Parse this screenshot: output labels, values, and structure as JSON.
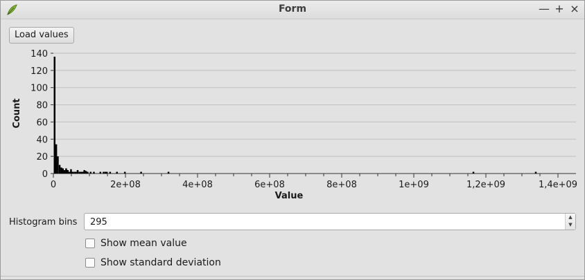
{
  "window": {
    "title": "Form",
    "controls": {
      "minimize": "—",
      "maximize": "+",
      "close": "×"
    }
  },
  "toolbar": {
    "load_label": "Load values"
  },
  "chart_data": {
    "type": "bar",
    "title": "",
    "xlabel": "Value",
    "ylabel": "Count",
    "xlim": [
      0,
      1400000000
    ],
    "ylim": [
      0,
      140
    ],
    "xticks": [
      0,
      200000000,
      400000000,
      600000000,
      800000000,
      1000000000,
      1200000000,
      1400000000
    ],
    "xtick_labels": [
      "0",
      "2e+08",
      "4e+08",
      "6e+08",
      "8e+08",
      "1e+09",
      "1,2e+09",
      "1,4e+09"
    ],
    "yticks": [
      0,
      20,
      40,
      60,
      80,
      100,
      120,
      140
    ],
    "ytick_labels": [
      "0",
      "20",
      "40",
      "60",
      "80",
      "100",
      "120",
      "140"
    ],
    "grid": "horizontal",
    "bar_width": 4500000,
    "bars": [
      {
        "x": 1000000,
        "y": 136
      },
      {
        "x": 5500000,
        "y": 34
      },
      {
        "x": 10000000,
        "y": 20
      },
      {
        "x": 15000000,
        "y": 10
      },
      {
        "x": 19500000,
        "y": 7
      },
      {
        "x": 24000000,
        "y": 6
      },
      {
        "x": 28500000,
        "y": 4
      },
      {
        "x": 33000000,
        "y": 6
      },
      {
        "x": 37500000,
        "y": 4
      },
      {
        "x": 42000000,
        "y": 2
      },
      {
        "x": 46500000,
        "y": 5
      },
      {
        "x": 51000000,
        "y": 2
      },
      {
        "x": 56000000,
        "y": 2
      },
      {
        "x": 60500000,
        "y": 2
      },
      {
        "x": 65000000,
        "y": 4
      },
      {
        "x": 70000000,
        "y": 2
      },
      {
        "x": 74500000,
        "y": 2
      },
      {
        "x": 79000000,
        "y": 2
      },
      {
        "x": 83500000,
        "y": 4
      },
      {
        "x": 88000000,
        "y": 3
      },
      {
        "x": 92500000,
        "y": 2
      },
      {
        "x": 101000000,
        "y": 2
      },
      {
        "x": 110000000,
        "y": 2
      },
      {
        "x": 128000000,
        "y": 2
      },
      {
        "x": 137000000,
        "y": 2
      },
      {
        "x": 142000000,
        "y": 2
      },
      {
        "x": 146000000,
        "y": 2
      },
      {
        "x": 155000000,
        "y": 2
      },
      {
        "x": 174000000,
        "y": 2
      },
      {
        "x": 196000000,
        "y": 2
      },
      {
        "x": 241000000,
        "y": 2
      },
      {
        "x": 317000000,
        "y": 2
      },
      {
        "x": 1163000000,
        "y": 2
      },
      {
        "x": 1336000000,
        "y": 2
      }
    ]
  },
  "form": {
    "bins_label": "Histogram bins",
    "bins_value": "295",
    "spin_up": "▲",
    "spin_down": "▼",
    "show_mean_label": "Show mean value",
    "show_mean_checked": false,
    "show_std_label": "Show standard deviation",
    "show_std_checked": false
  }
}
